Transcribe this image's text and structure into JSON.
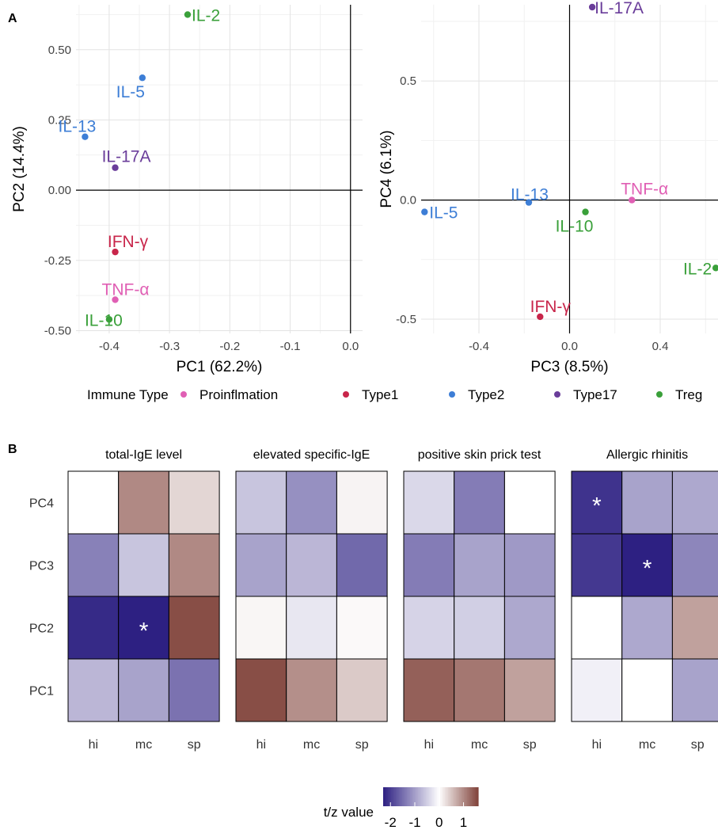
{
  "panel_a_label": "A",
  "panel_b_label": "B",
  "legend": {
    "title": "Immune Type",
    "items": [
      {
        "name": "Proinflmation",
        "color": "#e05fb4"
      },
      {
        "name": "Type1",
        "color": "#c8254a"
      },
      {
        "name": "Type2",
        "color": "#3d7ed6"
      },
      {
        "name": "Type17",
        "color": "#6a3d9a"
      },
      {
        "name": "Treg",
        "color": "#3aa03a"
      }
    ]
  },
  "chart_data": [
    {
      "type": "scatter",
      "xlabel": "PC1 (62.2%)",
      "ylabel": "PC2 (14.4%)",
      "xlim": [
        -0.455,
        0.02
      ],
      "ylim": [
        -0.51,
        0.66
      ],
      "xticks": [
        -0.4,
        -0.3,
        -0.2,
        -0.1,
        0.0
      ],
      "xtick_labels": [
        "-0.4",
        "-0.3",
        "-0.2",
        "-0.1",
        "0.0"
      ],
      "yticks": [
        -0.5,
        -0.25,
        0.0,
        0.25,
        0.5
      ],
      "ytick_labels": [
        "-0.50",
        "-0.25",
        "0.00",
        "0.25",
        "0.50"
      ],
      "grid": true,
      "points": [
        {
          "label": "IL-2",
          "group": "Treg",
          "x": -0.27,
          "y": 0.625
        },
        {
          "label": "IL-5",
          "group": "Type2",
          "x": -0.345,
          "y": 0.4
        },
        {
          "label": "IL-13",
          "group": "Type2",
          "x": -0.44,
          "y": 0.19
        },
        {
          "label": "IL-17A",
          "group": "Type17",
          "x": -0.39,
          "y": 0.08
        },
        {
          "label": "IFN-γ",
          "group": "Type1",
          "x": -0.39,
          "y": -0.22
        },
        {
          "label": "TNF-α",
          "group": "Proinflmation",
          "x": -0.39,
          "y": -0.39
        },
        {
          "label": "IL-10",
          "group": "Treg",
          "x": -0.4,
          "y": -0.46
        }
      ]
    },
    {
      "type": "scatter",
      "xlabel": "PC3 (8.5%)",
      "ylabel": "PC4 (6.1%)",
      "xlim": [
        -0.655,
        0.655
      ],
      "ylim": [
        -0.56,
        0.82
      ],
      "xticks": [
        -0.4,
        0.0,
        0.4
      ],
      "xtick_labels": [
        "-0.4",
        "0.0",
        "0.4"
      ],
      "yticks": [
        -0.5,
        0.0,
        0.5
      ],
      "ytick_labels": [
        "-0.5",
        "0.0",
        "0.5"
      ],
      "grid": true,
      "points": [
        {
          "label": "IL-17A",
          "group": "Type17",
          "x": 0.1,
          "y": 0.81
        },
        {
          "label": "TNF-α",
          "group": "Proinflmation",
          "x": 0.275,
          "y": 0.0
        },
        {
          "label": "IL-13",
          "group": "Type2",
          "x": -0.18,
          "y": -0.01
        },
        {
          "label": "IL-5",
          "group": "Type2",
          "x": -0.64,
          "y": -0.05
        },
        {
          "label": "IL-10",
          "group": "Treg",
          "x": 0.07,
          "y": -0.05
        },
        {
          "label": "IL-2",
          "group": "Treg",
          "x": 0.645,
          "y": -0.285
        },
        {
          "label": "IFN-γ",
          "group": "Type1",
          "x": -0.13,
          "y": -0.49
        }
      ]
    },
    {
      "type": "heatmap",
      "rows": [
        "PC4",
        "PC3",
        "PC2",
        "PC1"
      ],
      "columns": [
        "hi",
        "mc",
        "sp"
      ],
      "color_range": [
        -2.3,
        1.6
      ],
      "panels": [
        {
          "title": "total-IgE level",
          "values": [
            [
              0.0,
              1.0,
              0.35
            ],
            [
              -1.3,
              -0.6,
              1.0
            ],
            [
              -2.2,
              -2.3,
              1.5
            ],
            [
              -0.75,
              -0.95,
              -1.45
            ]
          ],
          "stars": [
            [
              false,
              false,
              false
            ],
            [
              false,
              false,
              false
            ],
            [
              false,
              true,
              false
            ],
            [
              false,
              false,
              false
            ]
          ]
        },
        {
          "title": "elevated specific-IgE",
          "values": [
            [
              -0.6,
              -1.15,
              0.1
            ],
            [
              -0.95,
              -0.75,
              -1.55
            ],
            [
              0.08,
              -0.25,
              0.05
            ],
            [
              1.5,
              0.95,
              0.45
            ]
          ],
          "stars": [
            [
              false,
              false,
              false
            ],
            [
              false,
              false,
              false
            ],
            [
              false,
              false,
              false
            ],
            [
              false,
              false,
              false
            ]
          ]
        },
        {
          "title": "positive skin prick test",
          "values": [
            [
              -0.4,
              -1.35,
              0.0
            ],
            [
              -1.35,
              -0.95,
              -1.05
            ],
            [
              -0.45,
              -0.5,
              -0.9
            ],
            [
              1.35,
              1.15,
              0.8
            ]
          ],
          "stars": [
            [
              false,
              false,
              false
            ],
            [
              false,
              false,
              false
            ],
            [
              false,
              false,
              false
            ],
            [
              false,
              false,
              false
            ]
          ]
        },
        {
          "title": "Allergic rhinitis",
          "values": [
            [
              -2.1,
              -0.95,
              -0.9
            ],
            [
              -2.05,
              -2.3,
              -1.25
            ],
            [
              0.0,
              -0.9,
              0.8
            ],
            [
              -0.15,
              0.0,
              -0.95
            ]
          ],
          "stars": [
            [
              true,
              false,
              false
            ],
            [
              false,
              true,
              false
            ],
            [
              false,
              false,
              false
            ],
            [
              false,
              false,
              false
            ]
          ]
        }
      ],
      "colorbar": {
        "title": "t/z value",
        "ticks": [
          -2,
          -1,
          0,
          1
        ],
        "tick_labels": [
          "-2",
          "-1",
          "0",
          "1"
        ]
      }
    }
  ]
}
